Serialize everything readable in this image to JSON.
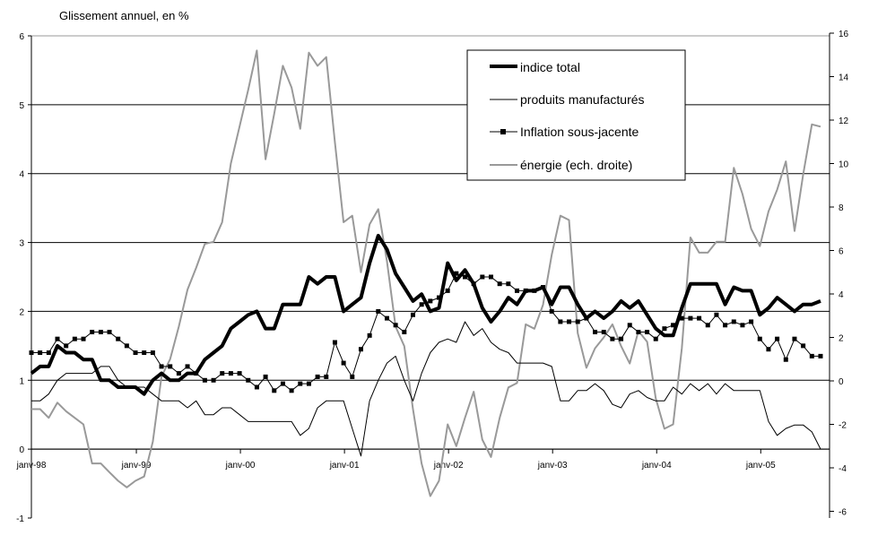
{
  "chart_data": {
    "type": "line",
    "title": "Glissement annuel, en %",
    "x_start": "1998-01",
    "x_frequency": "monthly",
    "x_tick_labels": [
      "janv-98",
      "janv-99",
      "janv-00",
      "janv-01",
      "janv-02",
      "janv-03",
      "janv-04",
      "janv-05"
    ],
    "y_left": {
      "range": [
        -1,
        6
      ],
      "ticks": [
        "-1",
        "0",
        "1",
        "2",
        "3",
        "4",
        "5",
        "6"
      ]
    },
    "y_right": {
      "range": [
        -6,
        16
      ],
      "ticks": [
        "-6",
        "-4",
        "-2",
        "0",
        "2",
        "4",
        "6",
        "8",
        "10",
        "12",
        "14",
        "16"
      ]
    },
    "grid": "horizontal on left axis",
    "legend_placement": "top-center",
    "series": [
      {
        "name": "indice total",
        "axis": "left",
        "color": "#000000",
        "style": "thick",
        "values": [
          1.1,
          1.2,
          1.2,
          1.5,
          1.4,
          1.4,
          1.3,
          1.3,
          1.0,
          1.0,
          0.9,
          0.9,
          0.9,
          0.8,
          1.0,
          1.1,
          1.0,
          1.0,
          1.1,
          1.1,
          1.3,
          1.4,
          1.5,
          1.75,
          1.85,
          1.95,
          2.0,
          1.75,
          1.75,
          2.1,
          2.1,
          2.1,
          2.5,
          2.4,
          2.5,
          2.5,
          2.0,
          2.1,
          2.2,
          2.7,
          3.1,
          2.9,
          2.55,
          2.35,
          2.15,
          2.25,
          2.0,
          2.05,
          2.7,
          2.45,
          2.6,
          2.4,
          2.05,
          1.85,
          2.0,
          2.2,
          2.1,
          2.3,
          2.3,
          2.35,
          2.1,
          2.35,
          2.35,
          2.1,
          1.9,
          2.0,
          1.9,
          2.0,
          2.15,
          2.05,
          2.15,
          1.95,
          1.75,
          1.65,
          1.65,
          2.05,
          2.4,
          2.4,
          2.4,
          2.4,
          2.1,
          2.35,
          2.3,
          2.3,
          1.95,
          2.05,
          2.2,
          2.1,
          2.0,
          2.1,
          2.1,
          2.15
        ]
      },
      {
        "name": "produits manufacturés",
        "axis": "left",
        "color": "#000000",
        "style": "thin",
        "values": [
          0.7,
          0.7,
          0.8,
          1.0,
          1.1,
          1.1,
          1.1,
          1.1,
          1.2,
          1.2,
          1.0,
          0.9,
          0.9,
          0.9,
          0.8,
          0.7,
          0.7,
          0.7,
          0.6,
          0.7,
          0.5,
          0.5,
          0.6,
          0.6,
          0.5,
          0.4,
          0.4,
          0.4,
          0.4,
          0.4,
          0.4,
          0.2,
          0.3,
          0.6,
          0.7,
          0.7,
          0.7,
          0.3,
          -0.1,
          0.7,
          1.0,
          1.25,
          1.35,
          1.0,
          0.7,
          1.1,
          1.4,
          1.55,
          1.6,
          1.55,
          1.85,
          1.65,
          1.75,
          1.55,
          1.45,
          1.4,
          1.25,
          1.25,
          1.25,
          1.25,
          1.2,
          0.7,
          0.7,
          0.85,
          0.85,
          0.95,
          0.85,
          0.65,
          0.6,
          0.8,
          0.85,
          0.75,
          0.7,
          0.7,
          0.9,
          0.8,
          0.95,
          0.85,
          0.95,
          0.8,
          0.95,
          0.85,
          0.85,
          0.85,
          0.85,
          0.4,
          0.2,
          0.3,
          0.35,
          0.35,
          0.25,
          0.0
        ]
      },
      {
        "name": "Inflation sous-jacente",
        "axis": "left",
        "color": "#000000",
        "style": "square-markers",
        "values": [
          1.4,
          1.4,
          1.4,
          1.6,
          1.5,
          1.6,
          1.6,
          1.7,
          1.7,
          1.7,
          1.6,
          1.5,
          1.4,
          1.4,
          1.4,
          1.2,
          1.2,
          1.1,
          1.2,
          1.1,
          1.0,
          1.0,
          1.1,
          1.1,
          1.1,
          1.0,
          0.9,
          1.05,
          0.85,
          0.95,
          0.85,
          0.95,
          0.95,
          1.05,
          1.05,
          1.55,
          1.25,
          1.05,
          1.45,
          1.65,
          2.0,
          1.9,
          1.8,
          1.7,
          1.95,
          2.1,
          2.15,
          2.2,
          2.3,
          2.55,
          2.5,
          2.4,
          2.5,
          2.5,
          2.4,
          2.4,
          2.3,
          2.3,
          2.3,
          2.35,
          2.0,
          1.85,
          1.85,
          1.85,
          1.9,
          1.7,
          1.7,
          1.6,
          1.6,
          1.8,
          1.7,
          1.7,
          1.6,
          1.75,
          1.8,
          1.9,
          1.9,
          1.9,
          1.8,
          1.95,
          1.8,
          1.85,
          1.8,
          1.85,
          1.6,
          1.45,
          1.6,
          1.3,
          1.6,
          1.5,
          1.35,
          1.35
        ]
      },
      {
        "name": "énergie (ech. droite)",
        "axis": "right",
        "color": "#999999",
        "style": "medium",
        "values": [
          -1.3,
          -1.3,
          -1.7,
          -1.0,
          -1.4,
          -1.7,
          -2.0,
          -3.8,
          -3.8,
          -4.2,
          -4.6,
          -4.9,
          -4.6,
          -4.4,
          -2.8,
          0.2,
          1.0,
          2.5,
          4.2,
          5.2,
          6.3,
          6.4,
          7.3,
          10.0,
          11.7,
          13.4,
          15.2,
          10.2,
          12.3,
          14.5,
          13.5,
          11.6,
          15.1,
          14.5,
          14.9,
          11.0,
          7.3,
          7.6,
          5.0,
          7.2,
          7.9,
          5.5,
          2.5,
          1.6,
          -1.3,
          -3.8,
          -5.3,
          -4.6,
          -2.0,
          -3.0,
          -1.7,
          -0.5,
          -2.7,
          -3.5,
          -1.7,
          -0.3,
          -0.1,
          2.6,
          2.4,
          3.5,
          5.8,
          7.6,
          7.4,
          2.2,
          0.6,
          1.5,
          2.0,
          2.6,
          1.6,
          0.8,
          2.3,
          1.8,
          -0.8,
          -2.2,
          -2.0,
          1.5,
          6.6,
          5.9,
          5.9,
          6.4,
          6.4,
          9.8,
          8.6,
          7.0,
          6.2,
          7.8,
          8.8,
          10.1,
          6.9,
          9.5,
          11.8,
          11.7
        ]
      }
    ]
  }
}
